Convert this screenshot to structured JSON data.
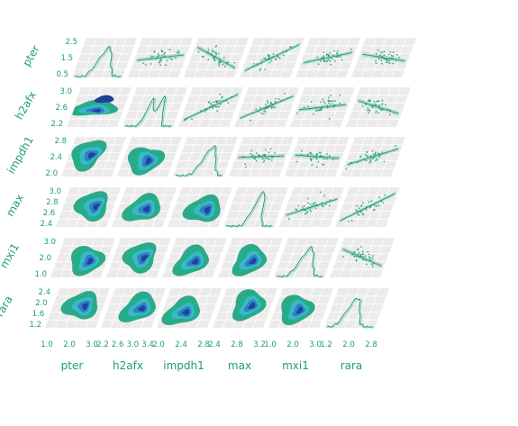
{
  "chart_data": {
    "type": "pairgrid",
    "variables": [
      "pter",
      "h2afx",
      "impdh1",
      "max",
      "mxi1",
      "rara"
    ],
    "upper": "scatter with regression line",
    "diagonal": "kde",
    "lower": "kde filled contours",
    "colors": {
      "accent": "#1a9e77",
      "kde_levels": [
        "#26a383",
        "#1fb08a",
        "#3fb6c9",
        "#2c7fc4",
        "#1f3f9a"
      ],
      "scatter": "#1a9e77",
      "panel": "#ebebeb"
    },
    "row_ticks": {
      "pter": [
        "2.5",
        "1.5",
        "0.5"
      ],
      "h2afx": [
        "3.0",
        "2.6",
        "2.2"
      ],
      "impdh1": [
        "2.8",
        "2.4",
        "2.0"
      ],
      "max": [
        "3.0",
        "2.8",
        "2.6",
        "2.4"
      ],
      "mxi1": [
        "3.0",
        "2.0",
        "1.0"
      ],
      "rara": [
        "2.4",
        "2.0",
        "1.6",
        "1.2"
      ]
    },
    "col_ticks": {
      "pter": [
        "1.0",
        "2.0",
        "3.0"
      ],
      "h2afx": [
        "2.2",
        "2.6",
        "3.0",
        "3.4"
      ],
      "impdh1": [
        "2.0",
        "2.4",
        "2.8"
      ],
      "max": [
        "2.4",
        "2.8",
        "3.2"
      ],
      "mxi1": [
        "1.0",
        "2.0",
        "3.0"
      ],
      "rara": [
        "1.2",
        "2.0",
        "2.8"
      ]
    }
  }
}
